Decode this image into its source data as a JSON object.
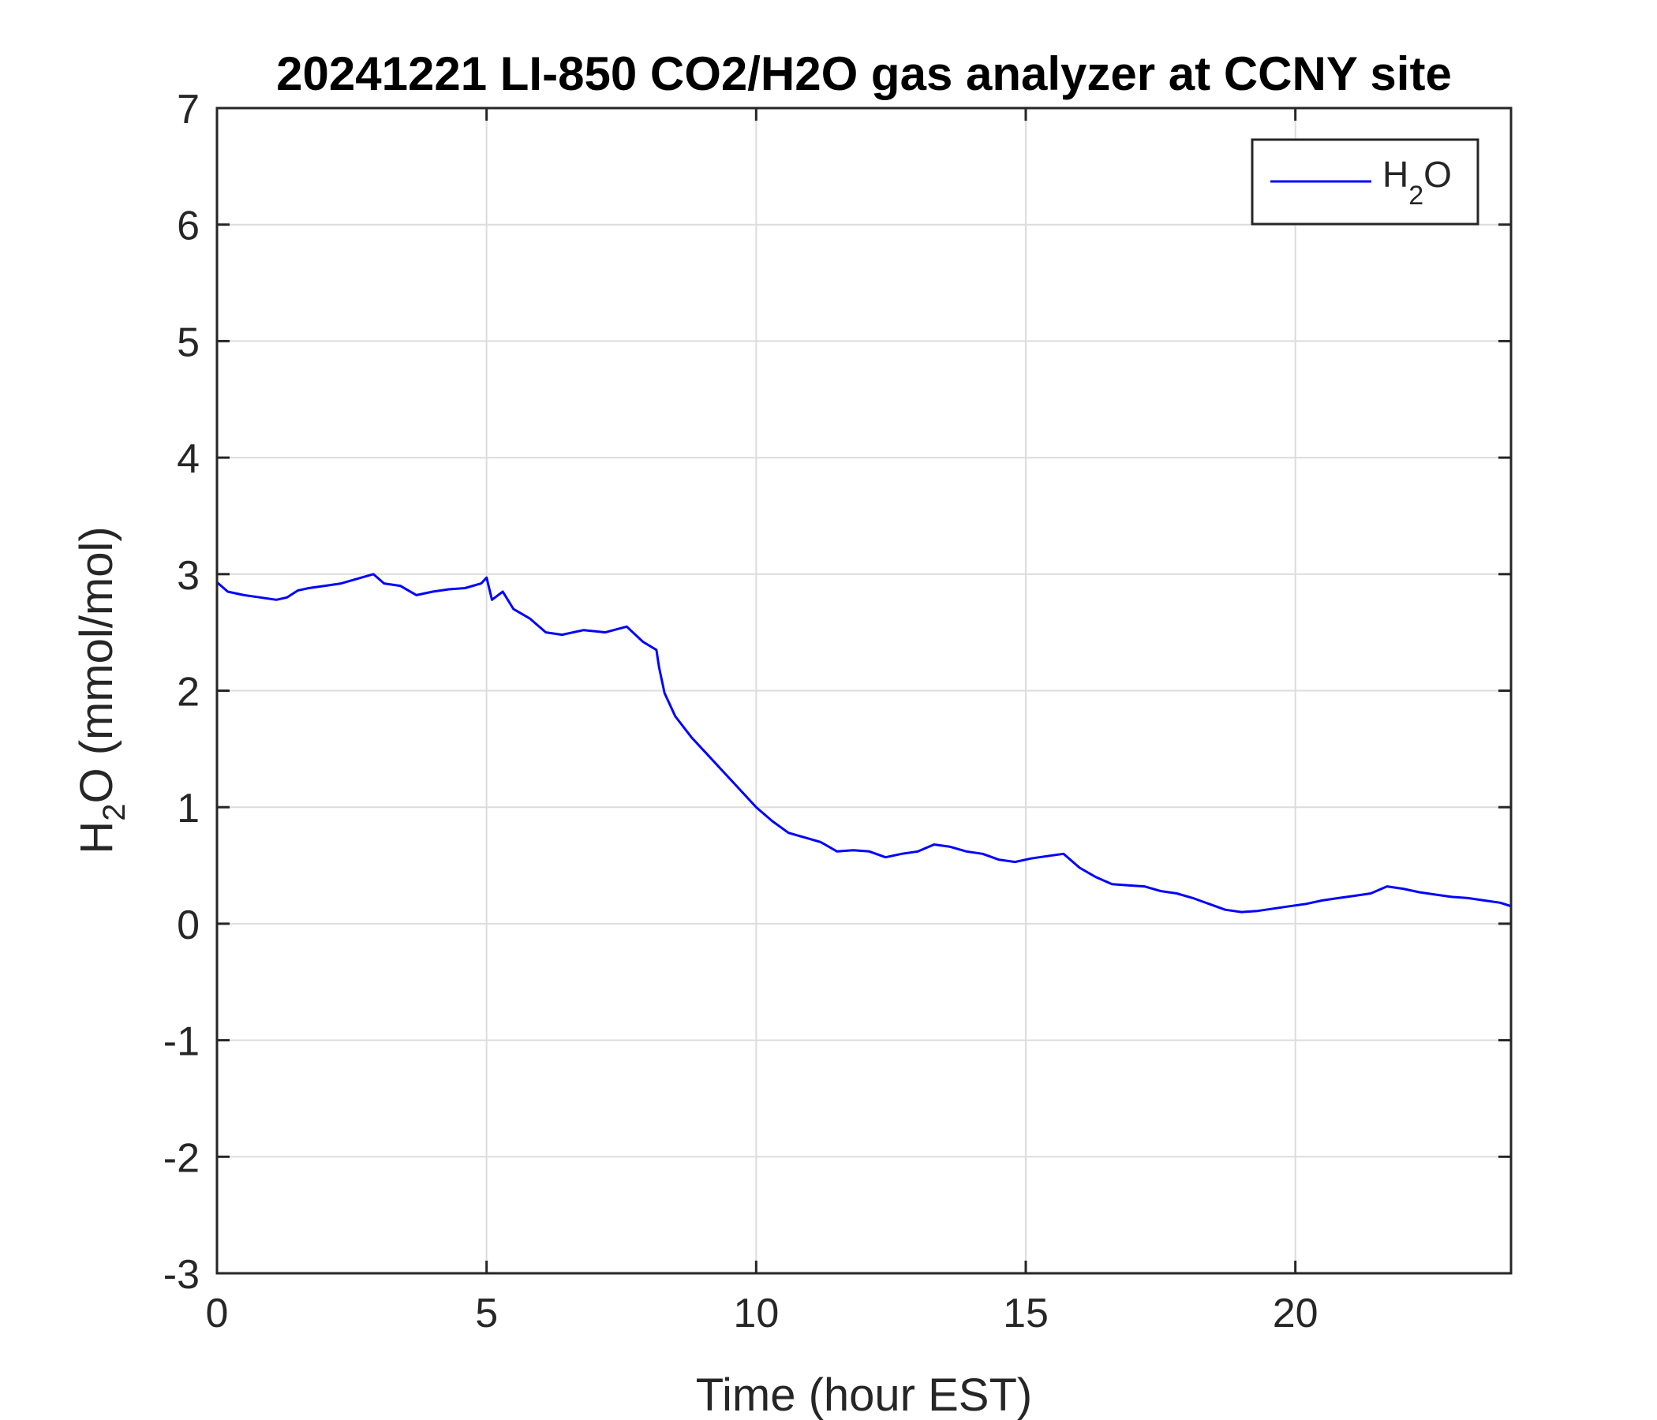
{
  "chart_data": {
    "type": "line",
    "title": "20241221 LI-850 CO2/H2O gas analyzer at CCNY site",
    "xlabel": "Time (hour EST)",
    "ylabel": {
      "main": "H",
      "sub": "2",
      "rest": "O (mmol/mol)"
    },
    "xlim": [
      0,
      24
    ],
    "ylim": [
      -3,
      7
    ],
    "xticks": [
      0,
      5,
      10,
      15,
      20
    ],
    "yticks": [
      -3,
      -2,
      -1,
      0,
      1,
      2,
      3,
      4,
      5,
      6,
      7
    ],
    "xtick_labels": [
      "0",
      "5",
      "10",
      "15",
      "20"
    ],
    "ytick_labels": [
      "-3",
      "-2",
      "-1",
      "0",
      "1",
      "2",
      "3",
      "4",
      "5",
      "6",
      "7"
    ],
    "grid": true,
    "legend": {
      "placement": "top-right",
      "main": "H",
      "sub": "2",
      "rest": "O"
    },
    "series": [
      {
        "color": "#0000ff",
        "x": [
          0,
          0.2,
          0.5,
          0.8,
          1.1,
          1.3,
          1.5,
          1.7,
          2.0,
          2.3,
          2.6,
          2.9,
          3.1,
          3.4,
          3.7,
          4.0,
          4.3,
          4.6,
          4.9,
          5.0,
          5.1,
          5.3,
          5.5,
          5.8,
          6.1,
          6.4,
          6.8,
          7.2,
          7.6,
          7.9,
          8.15,
          8.2,
          8.3,
          8.5,
          8.8,
          9.1,
          9.4,
          9.7,
          10.0,
          10.3,
          10.6,
          10.9,
          11.2,
          11.5,
          11.8,
          12.1,
          12.4,
          12.7,
          13.0,
          13.3,
          13.6,
          13.9,
          14.2,
          14.5,
          14.8,
          15.1,
          15.4,
          15.7,
          16.0,
          16.3,
          16.6,
          16.9,
          17.2,
          17.5,
          17.8,
          18.1,
          18.4,
          18.7,
          19.0,
          19.3,
          19.6,
          19.9,
          20.2,
          20.5,
          20.8,
          21.1,
          21.4,
          21.7,
          22.0,
          22.3,
          22.6,
          22.9,
          23.2,
          23.5,
          23.8,
          24.0
        ],
        "values": [
          2.93,
          2.85,
          2.82,
          2.8,
          2.78,
          2.8,
          2.86,
          2.88,
          2.9,
          2.92,
          2.96,
          3.0,
          2.92,
          2.9,
          2.82,
          2.85,
          2.87,
          2.88,
          2.92,
          2.97,
          2.78,
          2.85,
          2.7,
          2.62,
          2.5,
          2.48,
          2.52,
          2.5,
          2.55,
          2.42,
          2.35,
          2.2,
          1.98,
          1.78,
          1.6,
          1.45,
          1.3,
          1.15,
          1.0,
          0.88,
          0.78,
          0.74,
          0.7,
          0.62,
          0.63,
          0.62,
          0.57,
          0.6,
          0.62,
          0.68,
          0.66,
          0.62,
          0.6,
          0.55,
          0.53,
          0.56,
          0.58,
          0.6,
          0.48,
          0.4,
          0.34,
          0.33,
          0.32,
          0.28,
          0.26,
          0.22,
          0.17,
          0.12,
          0.1,
          0.11,
          0.13,
          0.15,
          0.17,
          0.2,
          0.22,
          0.24,
          0.26,
          0.32,
          0.3,
          0.27,
          0.25,
          0.23,
          0.22,
          0.2,
          0.18,
          0.15
        ]
      }
    ]
  }
}
